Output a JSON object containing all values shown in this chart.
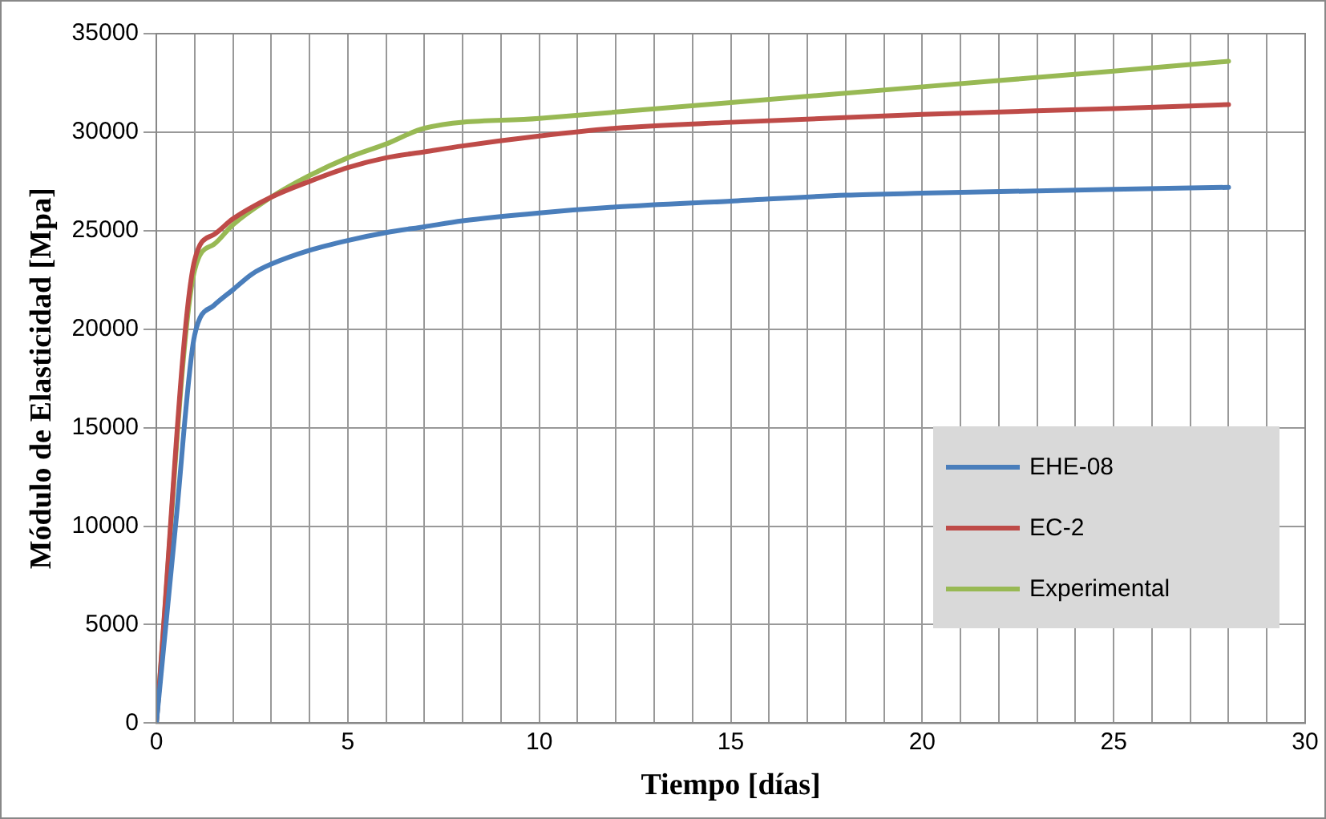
{
  "chart_data": {
    "type": "line",
    "xlabel": "Tiempo [días]",
    "ylabel": "Módulo de Elasticidad [Mpa]",
    "xlim": [
      0,
      30
    ],
    "xticks": [
      0,
      {
        "value": 1,
        "label": null
      },
      {
        "value": 2,
        "label": null
      },
      {
        "value": 3,
        "label": null
      },
      {
        "value": 4,
        "label": null
      },
      5,
      {
        "value": 6,
        "label": null
      },
      {
        "value": 7,
        "label": null
      },
      {
        "value": 8,
        "label": null
      },
      {
        "value": 9,
        "label": null
      },
      10,
      {
        "value": 11,
        "label": null
      },
      {
        "value": 12,
        "label": null
      },
      {
        "value": 13,
        "label": null
      },
      {
        "value": 14,
        "label": null
      },
      15,
      {
        "value": 16,
        "label": null
      },
      {
        "value": 17,
        "label": null
      },
      {
        "value": 18,
        "label": null
      },
      {
        "value": 19,
        "label": null
      },
      20,
      {
        "value": 21,
        "label": null
      },
      {
        "value": 22,
        "label": null
      },
      {
        "value": 23,
        "label": null
      },
      {
        "value": 24,
        "label": null
      },
      25,
      {
        "value": 26,
        "label": null
      },
      {
        "value": 27,
        "label": null
      },
      {
        "value": 28,
        "label": null
      },
      {
        "value": 29,
        "label": null
      },
      30
    ],
    "ylim": [
      0,
      35000
    ],
    "yticks": [
      0,
      5000,
      10000,
      15000,
      20000,
      25000,
      30000,
      35000
    ],
    "grid": true,
    "legend": "right",
    "marker": "none",
    "line_style": "solid",
    "series": [
      {
        "name": "EHE-08",
        "color": "#4a7ebb",
        "x": [
          0,
          0.5,
          1,
          1.5,
          2,
          2.5,
          3,
          4,
          5,
          6,
          7,
          8,
          10,
          12,
          15,
          18,
          20,
          25,
          28
        ],
        "values": [
          0,
          10000,
          19700,
          21200,
          22000,
          22800,
          23300,
          24000,
          24500,
          24900,
          25200,
          25500,
          25900,
          26200,
          26500,
          26800,
          26900,
          27100,
          27200
        ]
      },
      {
        "name": "EC-2",
        "color": "#be4b48",
        "x": [
          0,
          1,
          1.5,
          2,
          3,
          4,
          5,
          6,
          7,
          8,
          10,
          12,
          15,
          20,
          25,
          28
        ],
        "values": [
          0,
          23500,
          24800,
          25600,
          26700,
          27500,
          28200,
          28700,
          29000,
          29300,
          29800,
          30200,
          30500,
          30900,
          31200,
          31400
        ]
      },
      {
        "name": "Experimental",
        "color": "#98b954",
        "x": [
          0,
          1,
          1.5,
          2,
          3,
          4,
          5,
          6,
          7,
          10,
          15,
          20,
          25,
          28
        ],
        "values": [
          0,
          23000,
          24300,
          25300,
          26700,
          27800,
          28700,
          29400,
          30200,
          30700,
          31500,
          32300,
          33100,
          33600
        ]
      }
    ]
  }
}
